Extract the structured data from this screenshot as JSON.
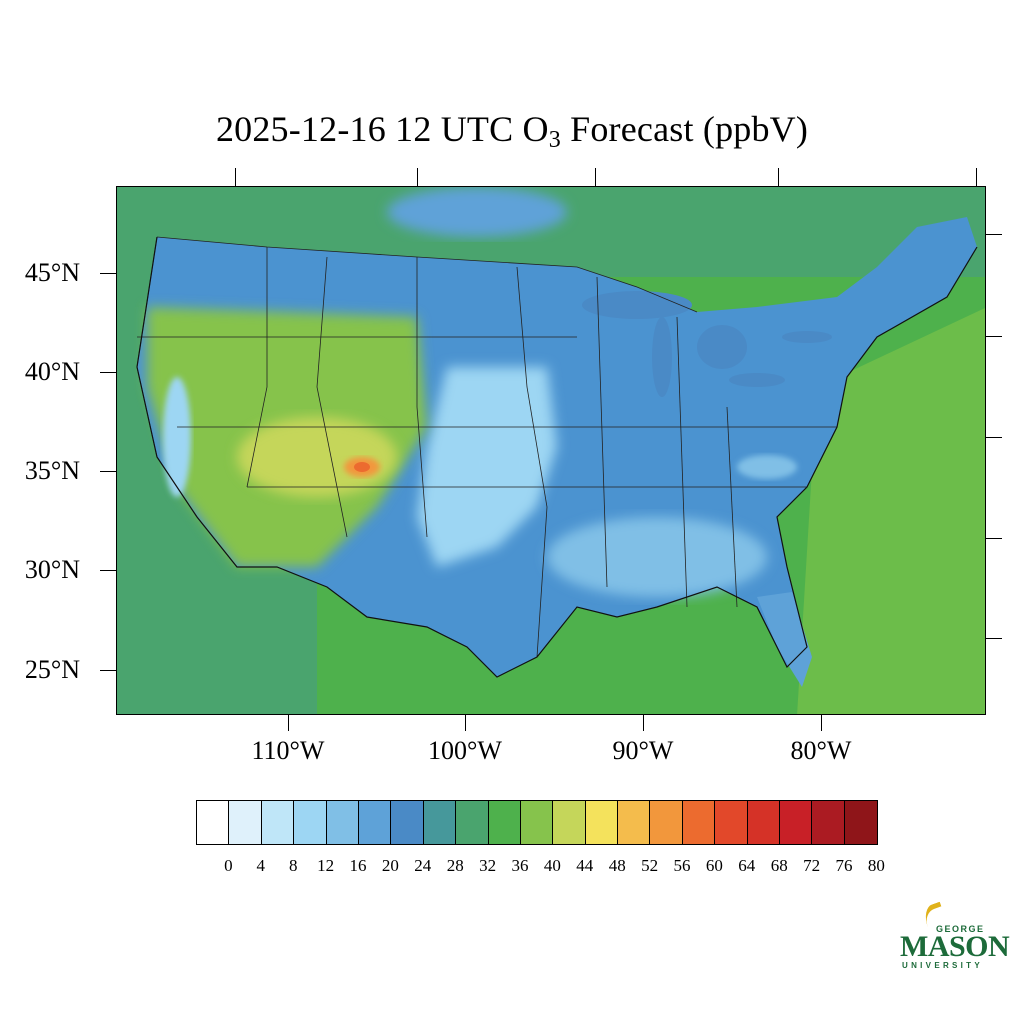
{
  "title": {
    "prefix": "2025-12-16 12 UTC O",
    "subscript": "3",
    "suffix": " Forecast (ppbV)"
  },
  "map": {
    "latitude_labels": [
      "45°N",
      "40°N",
      "35°N",
      "30°N",
      "25°N"
    ],
    "longitude_labels": [
      "110°W",
      "100°W",
      "90°W",
      "80°W"
    ],
    "field": "O3 forecast, CONUS domain",
    "colors": {
      "ocean_pacific": "#4a9e6e",
      "ocean_atlantic": "#5cb24c",
      "gulf": "#6cbd4a",
      "land_base": "#4b93d0",
      "boundaries": "#222222"
    }
  },
  "colorbar": {
    "labels": [
      "0",
      "4",
      "8",
      "12",
      "16",
      "20",
      "24",
      "28",
      "32",
      "36",
      "40",
      "44",
      "48",
      "52",
      "56",
      "60",
      "64",
      "68",
      "72",
      "76",
      "80"
    ],
    "colors": [
      "#ffffff",
      "#dff1fb",
      "#bfe6f8",
      "#9dd6f3",
      "#80bfe6",
      "#5ea2d8",
      "#4a8ac6",
      "#46989b",
      "#4aa46e",
      "#4eb14c",
      "#86c34c",
      "#c5d65a",
      "#f4e25c",
      "#f4bc4c",
      "#f2973c",
      "#ec6b2f",
      "#e2482a",
      "#d53227",
      "#c82027",
      "#ab1b22",
      "#8f1519"
    ]
  },
  "logo": {
    "top_word": "GEORGE",
    "main_word": "MASON",
    "bottom_word": "UNIVERSITY"
  }
}
